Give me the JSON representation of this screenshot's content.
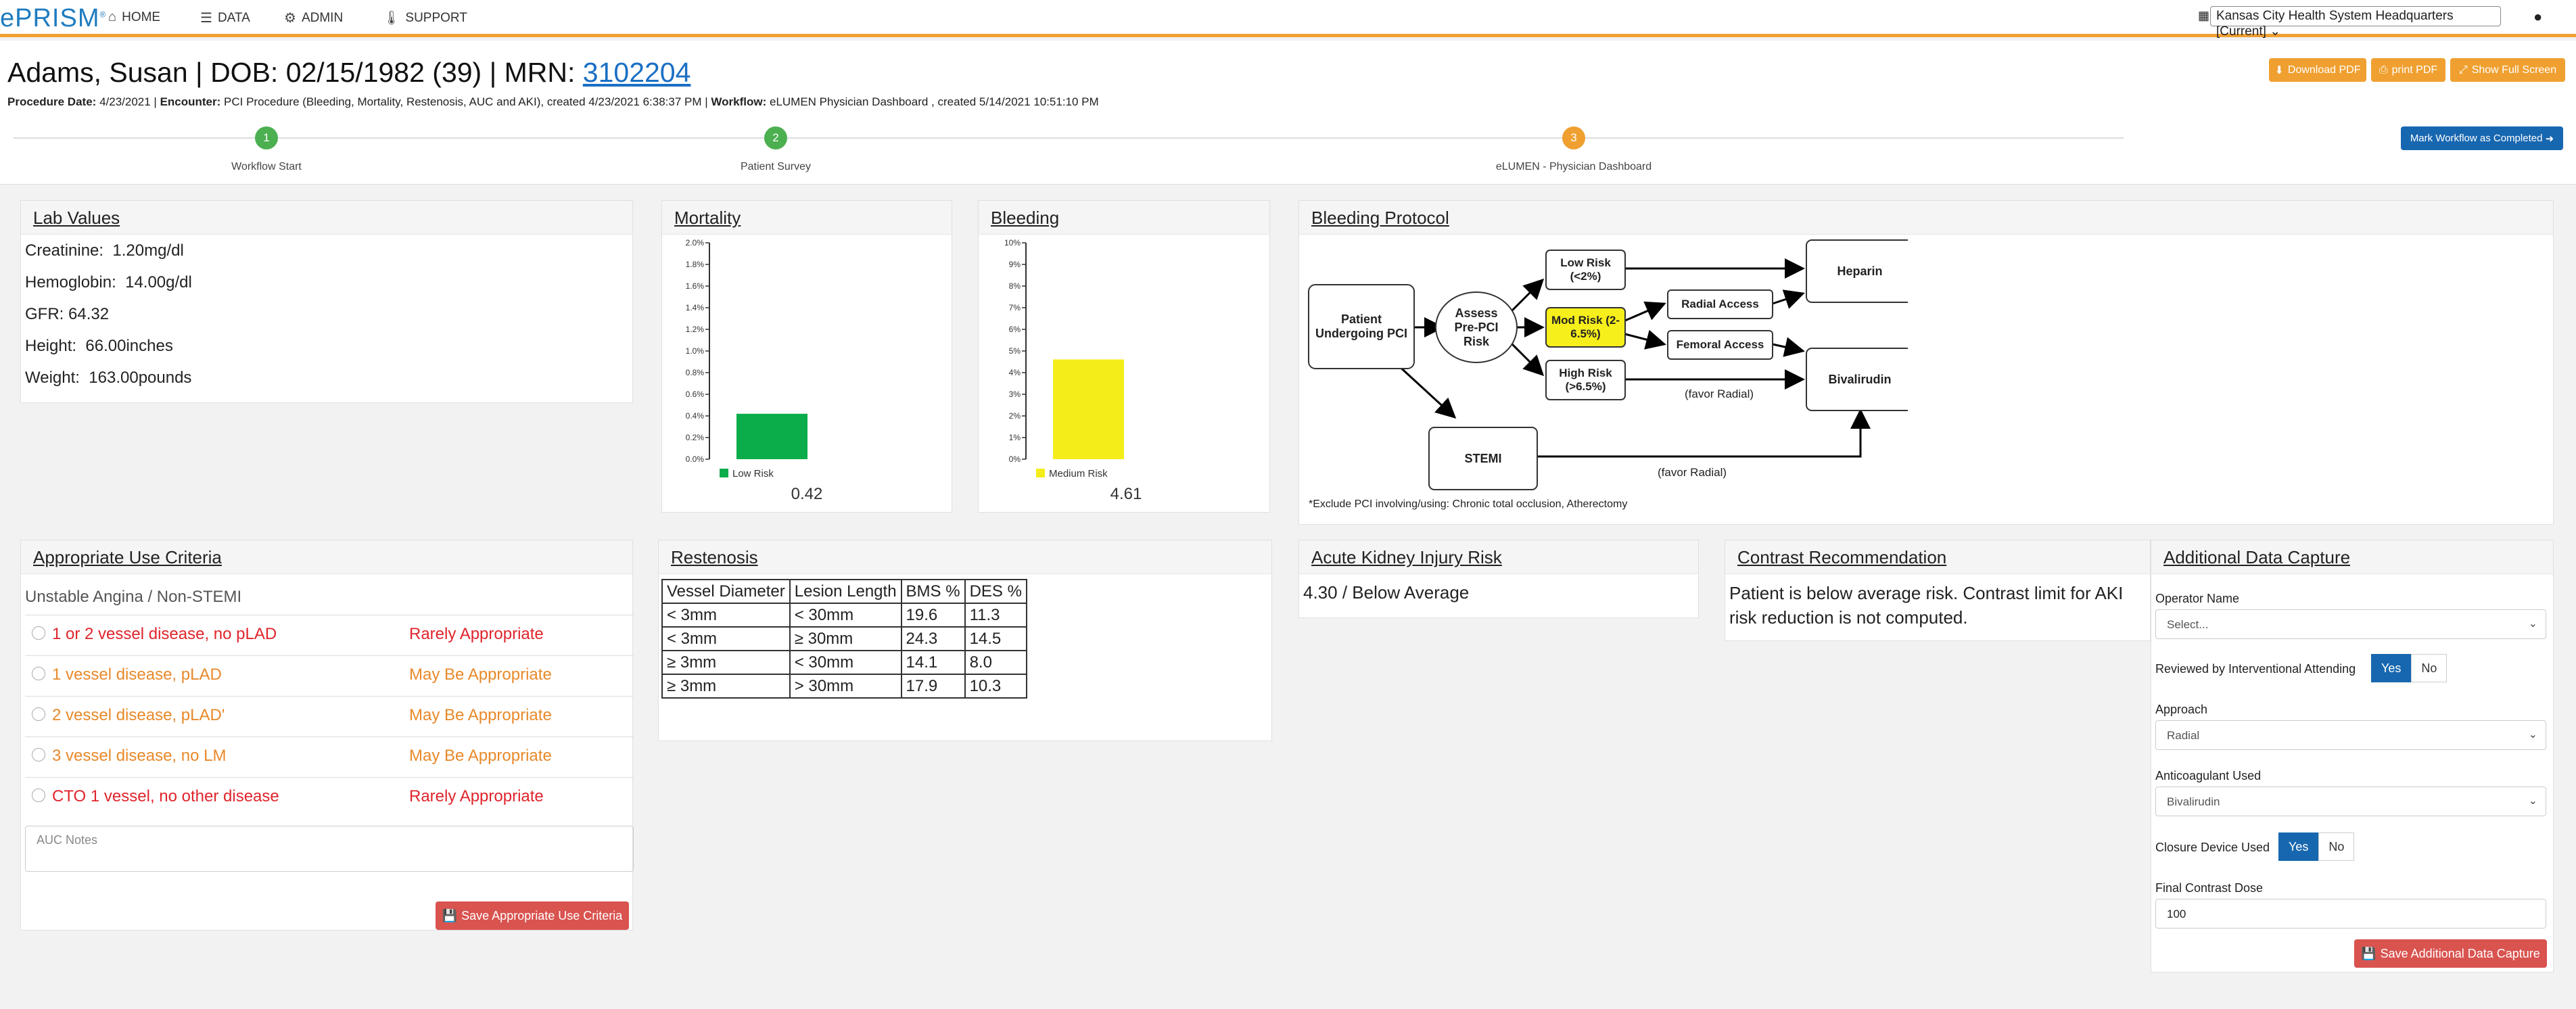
{
  "nav": {
    "logo": "ePRISM",
    "home": "HOME",
    "data": "DATA",
    "admin": "ADMIN",
    "support": "SUPPORT",
    "org": "Kansas City Health System Headquarters [Current]"
  },
  "patient": {
    "title_prefix": "Adams, Susan | DOB: 02/15/1982 (39) | MRN: ",
    "mrn": "3102204",
    "procedure_date_label": "Procedure Date:",
    "procedure_date": "4/23/2021 | ",
    "encounter_label": "Encounter:",
    "encounter": "PCI Procedure (Bleeding, Mortality, Restenosis, AUC and AKI), created 4/23/2021 6:38:37 PM | ",
    "workflow_label": "Workflow:",
    "workflow": "eLUMEN Physician Dashboard , created 5/14/2021 10:51:10 PM"
  },
  "buttons": {
    "download_pdf": "Download PDF",
    "print_pdf": "print PDF",
    "full_screen": "Show Full Screen",
    "mark_complete": "Mark Workflow as Completed"
  },
  "steps": [
    {
      "num": "1",
      "label": "Workflow Start",
      "color": "#4caf50"
    },
    {
      "num": "2",
      "label": "Patient Survey",
      "color": "#4caf50"
    },
    {
      "num": "3",
      "label": "eLUMEN - Physician Dashboard",
      "color": "#f0a030"
    }
  ],
  "lab": {
    "title": "Lab Values",
    "items": [
      {
        "k": "Creatinine:",
        "v": "1.20mg/dl"
      },
      {
        "k": "Hemoglobin:",
        "v": "14.00g/dl"
      },
      {
        "k": "GFR:",
        "v": "64.32"
      },
      {
        "k": "Height:",
        "v": "66.00inches"
      },
      {
        "k": "Weight:",
        "v": "163.00pounds"
      }
    ]
  },
  "mortality": {
    "title": "Mortality",
    "value_label": "0.42"
  },
  "bleeding": {
    "title": "Bleeding",
    "value_label": "4.61"
  },
  "chart_data": [
    {
      "type": "bar",
      "categories": [
        "Low Risk"
      ],
      "values": [
        0.42
      ],
      "ylim": [
        0,
        2.0
      ],
      "ticks": [
        "0.0%",
        "0.2%",
        "0.4%",
        "0.6%",
        "0.8%",
        "1.0%",
        "1.2%",
        "1.4%",
        "1.6%",
        "1.8%",
        "2.0%"
      ],
      "legend": "Low Risk",
      "color": "#0aad4a"
    },
    {
      "type": "bar",
      "categories": [
        "Medium Risk"
      ],
      "values": [
        4.61
      ],
      "ylim": [
        0,
        10
      ],
      "ticks": [
        "0%",
        "1%",
        "2%",
        "3%",
        "4%",
        "5%",
        "6%",
        "7%",
        "8%",
        "9%",
        "10%"
      ],
      "legend": "Medium Risk",
      "color": "#f5ed1a"
    }
  ],
  "protocol": {
    "title": "Bleeding Protocol",
    "patient": "Patient Undergoing PCI",
    "assess": "Assess Pre-PCI Risk",
    "low": "Low Risk (<2%)",
    "mod": "Mod Risk (2-6.5%)",
    "high": "High Risk (>6.5%)",
    "radial": "Radial Access",
    "femoral": "Femoral Access",
    "heparin": "Heparin",
    "bival": "Bivalirudin",
    "stemi": "STEMI",
    "favor1": "(favor Radial)",
    "favor2": "(favor Radial)",
    "footnote": "*Exclude PCI involving/using: Chronic total occlusion, Atherectomy"
  },
  "auc": {
    "title": "Appropriate Use Criteria",
    "subtitle": "Unstable Angina / Non-STEMI",
    "rows": [
      {
        "text": "1 or 2 vessel disease, no pLAD",
        "rating": "Rarely Appropriate",
        "cls": "red"
      },
      {
        "text": "1 vessel disease, pLAD",
        "rating": "May Be Appropriate",
        "cls": "org2"
      },
      {
        "text": "2 vessel disease, pLAD'",
        "rating": "May Be Appropriate",
        "cls": "org2"
      },
      {
        "text": "3 vessel disease, no LM",
        "rating": "May Be Appropriate",
        "cls": "org2"
      },
      {
        "text": "CTO 1 vessel, no other disease",
        "rating": "Rarely Appropriate",
        "cls": "red"
      }
    ],
    "notes_placeholder": "AUC Notes",
    "save": "Save Appropriate Use Criteria"
  },
  "restenosis": {
    "title": "Restenosis",
    "headers": [
      "Vessel Diameter",
      "Lesion Length",
      "BMS %",
      "DES %"
    ],
    "rows": [
      [
        "< 3mm",
        "< 30mm",
        "19.6",
        "11.3"
      ],
      [
        "< 3mm",
        "≥ 30mm",
        "24.3",
        "14.5"
      ],
      [
        "≥ 3mm",
        "< 30mm",
        "14.1",
        "8.0"
      ],
      [
        "≥ 3mm",
        "> 30mm",
        "17.9",
        "10.3"
      ]
    ]
  },
  "aki": {
    "title": "Acute Kidney Injury Risk",
    "value": "4.30 / ",
    "level": "Below Average"
  },
  "contrast": {
    "title": "Contrast Recommendation",
    "text": "Patient is below average risk. Contrast limit for AKI risk reduction is not computed."
  },
  "adc": {
    "title": "Additional Data Capture",
    "operator_label": "Operator Name",
    "operator_value": "Select...",
    "reviewed_label": "Reviewed by Interventional Attending",
    "yes": "Yes",
    "no": "No",
    "approach_label": "Approach",
    "approach_value": "Radial",
    "anticoag_label": "Anticoagulant Used",
    "anticoag_value": "Bivalirudin",
    "closure_label": "Closure Device Used",
    "dose_label": "Final Contrast Dose",
    "dose_value": "100",
    "save": "Save Additional Data Capture"
  }
}
